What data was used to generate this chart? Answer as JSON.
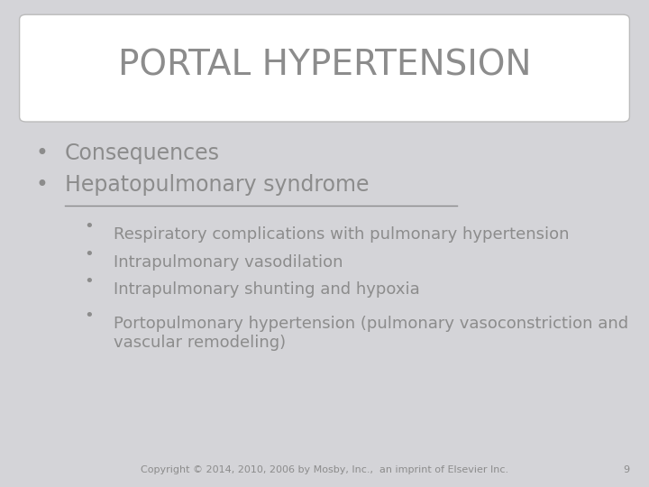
{
  "bg_color": "#d4d4d8",
  "title_box_color": "#ffffff",
  "title_text": "PORTAL HYPERTENSION",
  "title_color": "#8c8c8c",
  "title_fontsize": 28,
  "bullet1_color": "#8c8c8c",
  "bullet1_fontsize": 17,
  "bullet1_items": [
    "Consequences",
    "Hepatopulmonary syndrome"
  ],
  "bullet2_color": "#8c8c8c",
  "bullet2_fontsize": 13,
  "bullet2_items": [
    "Respiratory complications with pulmonary hypertension",
    "Intrapulmonary vasodilation",
    "Intrapulmonary shunting and hypoxia",
    "Portopulmonary hypertension (pulmonary vasoconstriction and\nvascular remodeling)"
  ],
  "copyright_text": "Copyright © 2014, 2010, 2006 by Mosby, Inc.,  an imprint of Elsevier Inc.",
  "page_number": "9",
  "footer_color": "#8c8c8c",
  "footer_fontsize": 8
}
